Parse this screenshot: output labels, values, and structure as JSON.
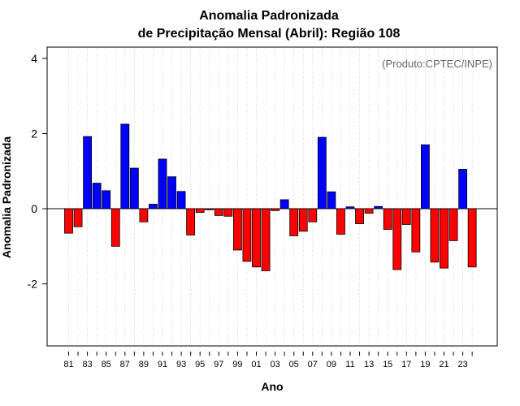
{
  "chart_data": {
    "type": "bar",
    "title": "Anomalia Padronizada",
    "subtitle": "de Precipitação Mensal (Abril): Região 108",
    "xlabel": "Ano",
    "ylabel": "Anomalia Padronizada",
    "annotation": "(Produto:CPTEC/INPE)",
    "ylim": [
      -3.65,
      4.3
    ],
    "yticks": [
      "-2",
      "0",
      "2",
      "4"
    ],
    "ytick_values": [
      -2,
      0,
      2,
      4
    ],
    "xtick_labels": [
      "81",
      "83",
      "85",
      "87",
      "89",
      "91",
      "93",
      "95",
      "97",
      "99",
      "01",
      "03",
      "05",
      "07",
      "09",
      "11",
      "13",
      "15",
      "17",
      "19",
      "21",
      "23"
    ],
    "categories": [
      "1981",
      "1982",
      "1983",
      "1984",
      "1985",
      "1986",
      "1987",
      "1988",
      "1989",
      "1990",
      "1991",
      "1992",
      "1993",
      "1994",
      "1995",
      "1996",
      "1997",
      "1998",
      "1999",
      "2000",
      "2001",
      "2002",
      "2003",
      "2004",
      "2005",
      "2006",
      "2007",
      "2008",
      "2009",
      "2010",
      "2011",
      "2012",
      "2013",
      "2014",
      "2015",
      "2016",
      "2017",
      "2018",
      "2019",
      "2020",
      "2021",
      "2022",
      "2023",
      "2024"
    ],
    "values": [
      -0.65,
      -0.48,
      1.92,
      0.68,
      0.48,
      -1.0,
      2.25,
      1.08,
      -0.35,
      0.12,
      1.32,
      0.85,
      0.46,
      -0.7,
      -0.1,
      -0.03,
      -0.18,
      -0.2,
      -1.1,
      -1.4,
      -1.55,
      -1.65,
      -0.05,
      0.24,
      -0.72,
      -0.6,
      -0.35,
      1.9,
      0.45,
      -0.68,
      0.05,
      -0.4,
      -0.12,
      0.06,
      -0.55,
      -1.62,
      -0.42,
      -1.15,
      1.7,
      -1.42,
      -1.58,
      -0.85,
      1.05,
      -1.55
    ],
    "positive_color": "#0000ff",
    "negative_color": "#ff0000",
    "grid": "vertical dotted",
    "zero_line": true
  }
}
